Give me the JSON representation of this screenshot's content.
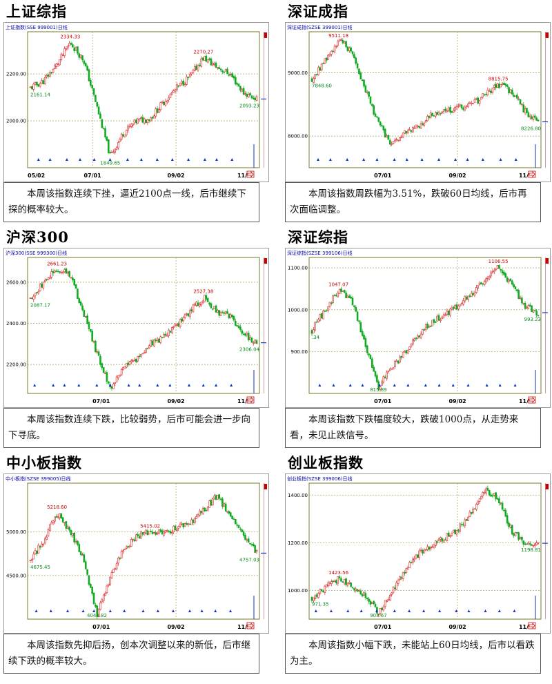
{
  "charts": [
    {
      "title": "上证综指",
      "header": "上证指数(SSE 999001)日线",
      "caption": "本周该指数连续下挫，逼近2100点一线，后市继续下探的概率较大。",
      "chart_data": {
        "type": "candlestick",
        "y_ticks": [
          2200,
          2000
        ],
        "y_tick_labels": [
          "2200.00",
          "2000.00"
        ],
        "ylim": [
          1800,
          2380
        ],
        "x_tick_labels": [
          "05/02",
          "07/01",
          "09/02",
          "11/"
        ],
        "path": [
          2140,
          2170,
          2240,
          2334,
          2260,
          2060,
          1849,
          1950,
          2000,
          2010,
          2080,
          2140,
          2190,
          2270,
          2230,
          2200,
          2120,
          2093
        ],
        "annotations": [
          {
            "label": "2334.33",
            "kind": "high"
          },
          {
            "label": "2270.27",
            "kind": "high"
          },
          {
            "label": "2161.14",
            "kind": "low"
          },
          {
            "label": "1849.65",
            "kind": "low"
          },
          {
            "label": "2093.23",
            "kind": "low"
          }
        ]
      }
    },
    {
      "title": "深证成指",
      "header": "深证成指(SZSE 399001)日线",
      "caption": "本周该指数周跌幅为3.51%，跌破60日均线，后市再次面临调整。",
      "chart_data": {
        "type": "candlestick",
        "y_ticks": [
          9000,
          8000
        ],
        "y_tick_labels": [
          "9000.00",
          "8000.00"
        ],
        "ylim": [
          7500,
          9650
        ],
        "x_tick_labels": [
          "07/01",
          "09/02",
          "11/"
        ],
        "path": [
          8900,
          9200,
          9511,
          9350,
          8750,
          8200,
          7848,
          8050,
          8150,
          8350,
          8400,
          8450,
          8500,
          8650,
          8815,
          8700,
          8400,
          8226
        ],
        "annotations": [
          {
            "label": "9511.18",
            "kind": "high"
          },
          {
            "label": "8815.75",
            "kind": "high"
          },
          {
            "label": "7848.60",
            "kind": "low"
          },
          {
            "label": "8226.80",
            "kind": "low"
          }
        ]
      }
    },
    {
      "title": "沪深300",
      "header": "沪深300(SSE 999300)日线",
      "caption": "本周该指数连续下跌，比较弱势，后市可能会进一步向下寻底。",
      "chart_data": {
        "type": "candlestick",
        "y_ticks": [
          2600,
          2400,
          2200
        ],
        "y_tick_labels": [
          "2600.00",
          "2400.00",
          "2200.00"
        ],
        "ylim": [
          2060,
          2720
        ],
        "x_tick_labels": [
          "07/01",
          "09/02",
          "11/"
        ],
        "path": [
          2520,
          2600,
          2661,
          2640,
          2450,
          2250,
          2087,
          2180,
          2230,
          2300,
          2330,
          2390,
          2460,
          2527,
          2460,
          2430,
          2350,
          2306
        ],
        "annotations": [
          {
            "label": "2661.23",
            "kind": "high"
          },
          {
            "label": "2527.38",
            "kind": "high"
          },
          {
            "label": "2087.17",
            "kind": "low"
          },
          {
            "label": "2306.04",
            "kind": "low"
          }
        ]
      }
    },
    {
      "title": "深证综指",
      "header": "深证综指(SZSE 399106)日线",
      "caption": "本周该指数下跌幅度较大，跌破1000点，从走势来看，未见止跌信号。",
      "chart_data": {
        "type": "candlestick",
        "y_ticks": [
          1100,
          1000,
          900
        ],
        "y_tick_labels": [
          "1100.00",
          "1000.00",
          "900.00"
        ],
        "ylim": [
          800,
          1125
        ],
        "x_tick_labels": [
          "07/01",
          "09/02",
          "11/"
        ],
        "path": [
          950,
          1000,
          1047,
          1020,
          920,
          815,
          860,
          900,
          940,
          970,
          990,
          1010,
          1040,
          1070,
          1106,
          1060,
          1010,
          993
        ],
        "annotations": [
          {
            "label": "1047.07",
            "kind": "high"
          },
          {
            "label": "1106.55",
            "kind": "high"
          },
          {
            "label": ".34",
            "kind": "low"
          },
          {
            "label": "815.89",
            "kind": "low"
          },
          {
            "label": "993.23",
            "kind": "low"
          }
        ]
      }
    },
    {
      "title": "中小板指数",
      "header": "中小板指(SZSE 399005)日线",
      "caption": "本周该指数先抑后扬，创本次调整以来的新低，后市继续下跌的概率较大。",
      "chart_data": {
        "type": "candlestick",
        "y_ticks": [
          5000,
          4500
        ],
        "y_tick_labels": [
          "5000.00",
          "4500.00"
        ],
        "ylim": [
          4000,
          5560
        ],
        "x_tick_labels": [
          "07/01",
          "09/02",
          "11/"
        ],
        "path": [
          4675,
          4900,
          5218,
          5000,
          4700,
          4040,
          4500,
          4800,
          4950,
          5000,
          4980,
          5050,
          5100,
          5250,
          5415,
          5200,
          4950,
          4757
        ],
        "annotations": [
          {
            "label": "5218.60",
            "kind": "high"
          },
          {
            "label": "5415.02",
            "kind": "high"
          },
          {
            "label": "4675.45",
            "kind": "low"
          },
          {
            "label": "4040.82",
            "kind": "low"
          },
          {
            "label": "4757.03",
            "kind": "low"
          }
        ]
      }
    },
    {
      "title": "创业板指数",
      "header": "创业板指(SZSE 399006)日线",
      "caption": "本周该指数小幅下跌，未能站上60日均线，后市以看跌为主。",
      "chart_data": {
        "type": "candlestick",
        "y_ticks": [
          1400,
          1200,
          1000
        ],
        "y_tick_labels": [
          "1400.00",
          "1200.00",
          "1000.00"
        ],
        "ylim": [
          880,
          1450
        ],
        "x_tick_labels": [
          "07/01",
          "09/02",
          "11/"
        ],
        "path": [
          971,
          1010,
          1050,
          1020,
          980,
          903,
          1000,
          1080,
          1150,
          1190,
          1220,
          1260,
          1330,
          1423,
          1380,
          1250,
          1200,
          1198
        ],
        "annotations": [
          {
            "label": "1423.56",
            "kind": "high"
          },
          {
            "label": "971.35",
            "kind": "low"
          },
          {
            "label": "903.67",
            "kind": "low"
          },
          {
            "label": "1198.81",
            "kind": "low"
          }
        ]
      }
    }
  ]
}
